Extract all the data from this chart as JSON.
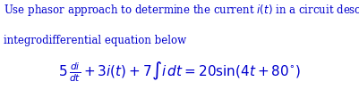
{
  "description_line1": "Use phasor approach to determine the current $i(t)$ in a circuit describe by the",
  "description_line2": "integrodifferential equation below",
  "equation": "$5\\,\\frac{di}{dt} + 3i(t) + 7\\int i\\,dt = 20\\sin(4t + 80^{\\circ})$",
  "text_color": "#0000cd",
  "bg_color": "#ffffff",
  "desc_fontsize": 8.5,
  "eq_fontsize": 11
}
